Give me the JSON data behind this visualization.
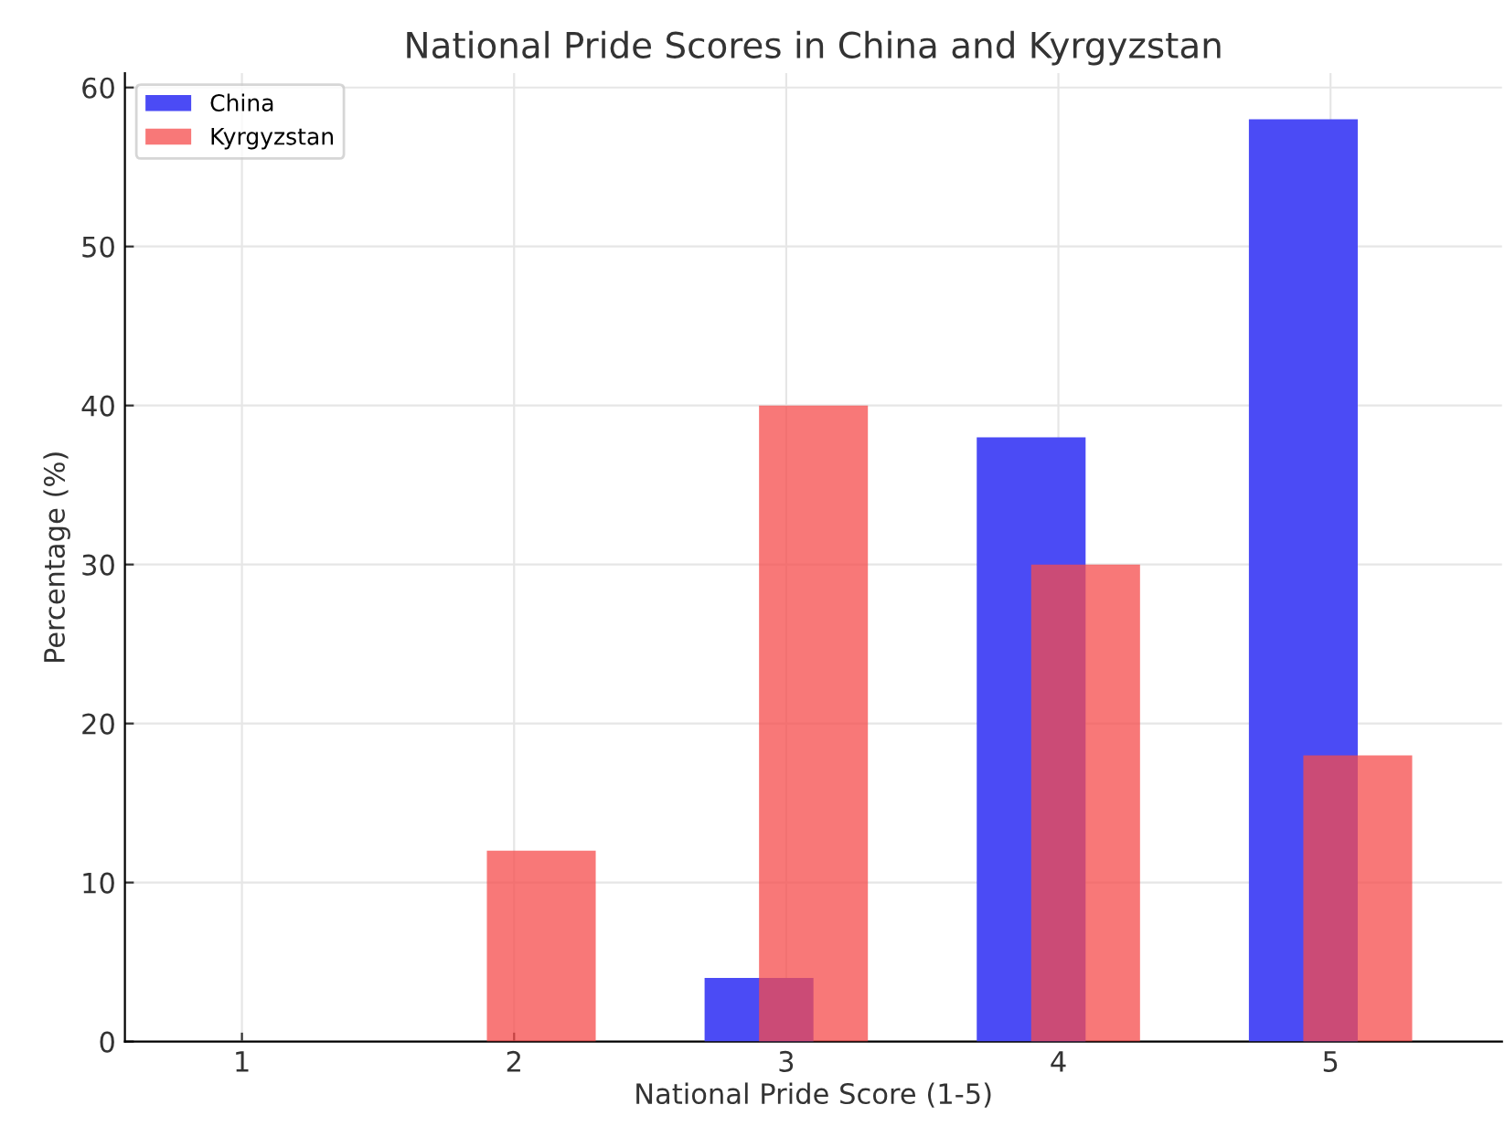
{
  "chart_data": {
    "type": "bar",
    "title": "National Pride Scores in China and Kyrgyzstan",
    "xlabel": "National Pride Score (1-5)",
    "ylabel": "Percentage (%)",
    "x": [
      1,
      2,
      3,
      4,
      5
    ],
    "series": [
      {
        "name": "China",
        "color": "#4b4bf5",
        "values": [
          0,
          0,
          4,
          38,
          58
        ]
      },
      {
        "name": "Kyrgyzstan",
        "color": "#f54b4b",
        "values": [
          0,
          12,
          40,
          30,
          18
        ]
      }
    ],
    "xlim": [
      0.57,
      5.63
    ],
    "xticks": [
      1,
      2,
      3,
      4,
      5
    ],
    "ylim": [
      0,
      60.9
    ],
    "yticks": [
      0,
      10,
      20,
      30,
      40,
      50,
      60
    ],
    "grid": true,
    "legend": "top left"
  }
}
